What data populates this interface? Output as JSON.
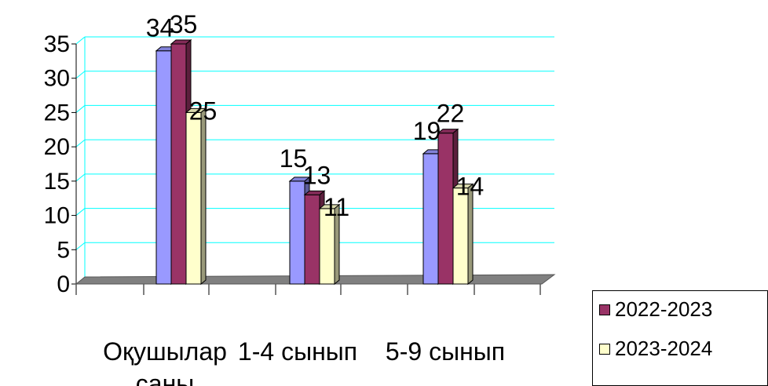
{
  "chart_data": {
    "type": "bar",
    "categories": [
      "Оқушылар саны",
      "1-4 сынып",
      "5-9 сынып"
    ],
    "category_lines": [
      [
        "Оқушылар",
        "саны"
      ],
      [
        "1-4 сынып"
      ],
      [
        "5-9 сынып"
      ]
    ],
    "series": [
      {
        "values": [
          34,
          15,
          19
        ],
        "color": "#9999ff"
      },
      {
        "name": "2022-2023",
        "values": [
          35,
          13,
          22
        ],
        "color": "#993366"
      },
      {
        "name": "2023-2024",
        "values": [
          25,
          11,
          14
        ],
        "color": "#ffffcc"
      }
    ],
    "ylim": [
      0,
      35
    ],
    "yticks": [
      0,
      5,
      10,
      15,
      20,
      25,
      30,
      35
    ],
    "gridline_color": "#00ffff",
    "floor_color": "#808080",
    "grid": true,
    "legend_position": "bottom-right"
  },
  "legend": {
    "items": [
      {
        "label": "2022-2023",
        "color": "#993366"
      },
      {
        "label": "2023-2024",
        "color": "#ffffcc"
      }
    ]
  }
}
